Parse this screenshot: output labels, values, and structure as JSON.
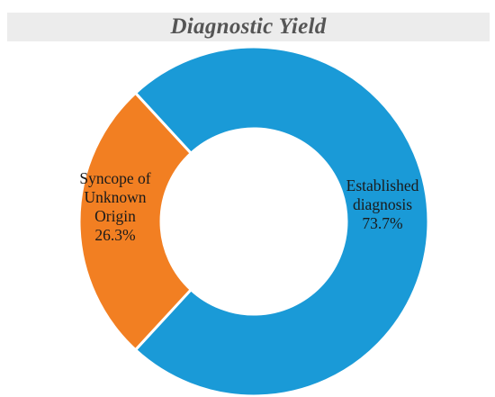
{
  "chart_data": {
    "type": "pie",
    "title": "Diagnostic Yield",
    "categories": [
      "Established diagnosis",
      "Syncope of Unknown Origin"
    ],
    "values": [
      73.7,
      26.3
    ],
    "value_labels": [
      "73.7%",
      "26.3%"
    ],
    "label_lines": [
      [
        "Established",
        "diagnosis",
        "73.7%"
      ],
      [
        "Syncope of",
        "Unknown",
        "Origin",
        "26.3%"
      ]
    ],
    "colors": [
      "#1a9ad7",
      "#f27f22"
    ],
    "donut": true,
    "legend": "none"
  }
}
